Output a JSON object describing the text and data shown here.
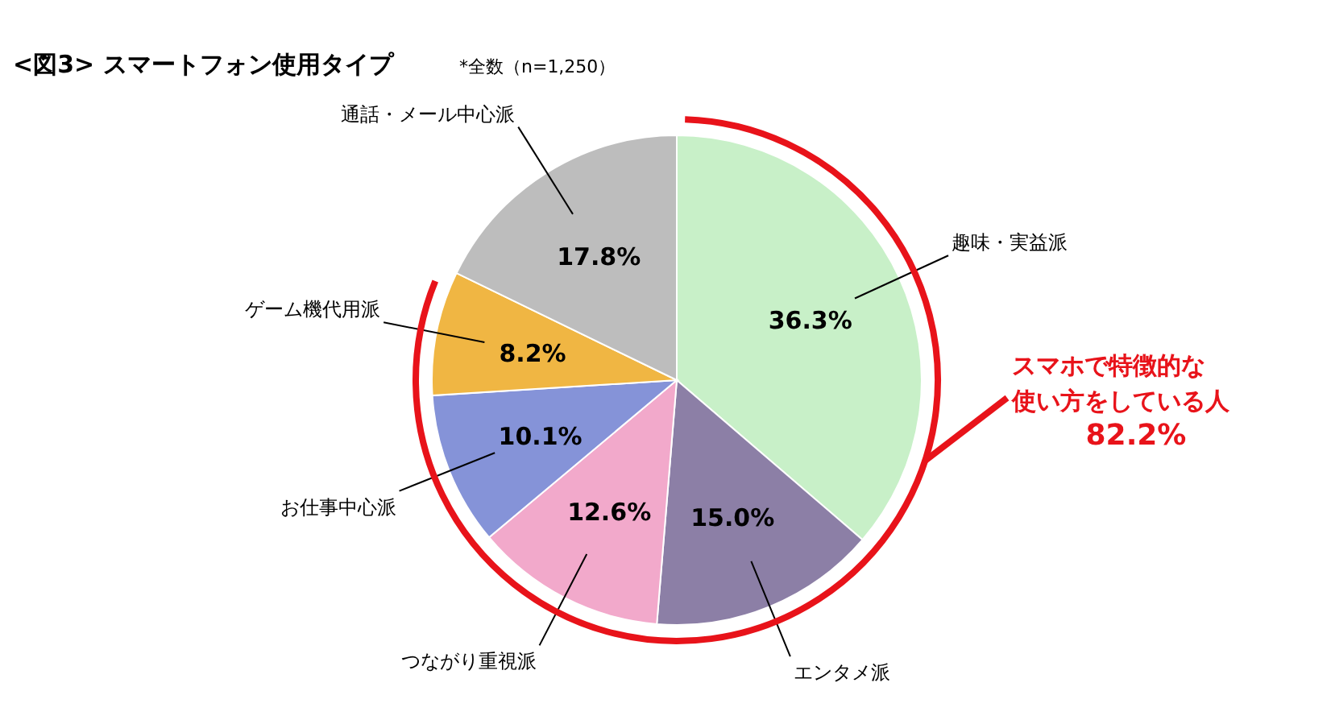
{
  "chart_data": {
    "type": "pie",
    "title": "<図3>  スマートフォン使用タイプ",
    "subtitle": "*全数（n=1,250）",
    "categories": [
      "趣味・実益派",
      "エンタメ派",
      "つながり重視派",
      "お仕事中心派",
      "ゲーム機代用派",
      "通話・メール中心派"
    ],
    "values": [
      36.3,
      15.0,
      12.6,
      10.1,
      8.2,
      17.8
    ],
    "colors": [
      "#c8f0c8",
      "#8c7fa6",
      "#f2a9cb",
      "#8593d8",
      "#f0b643",
      "#bdbdbd"
    ],
    "value_labels": [
      "36.3%",
      "15.0%",
      "12.6%",
      "10.1%",
      "8.2%",
      "17.8%"
    ],
    "annotations": [
      "スマホで特徴的な",
      "使い方をしている人",
      "82.2%"
    ]
  }
}
